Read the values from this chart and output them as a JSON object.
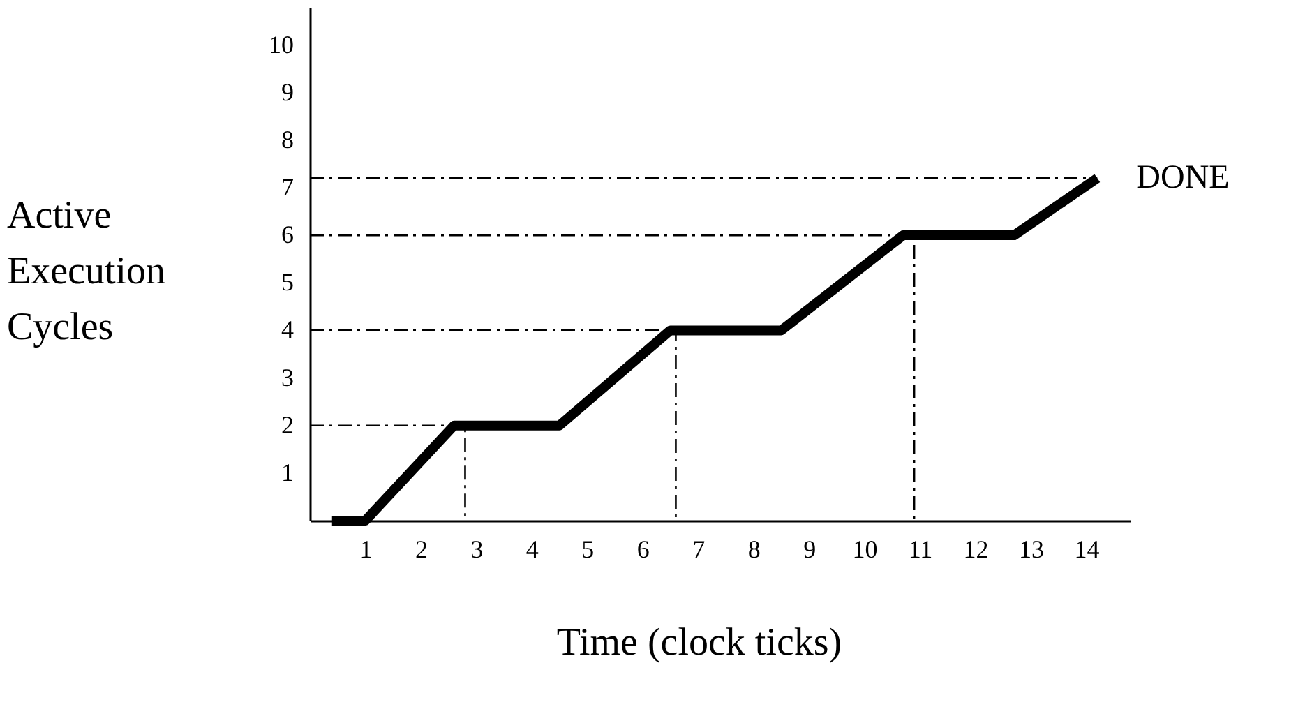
{
  "chart_data": {
    "type": "line",
    "xlabel": "Time (clock ticks)",
    "ylabel": "Active Execution Cycles",
    "xlim": [
      0,
      14.8
    ],
    "ylim": [
      0,
      10.8
    ],
    "xticks": [
      1,
      2,
      3,
      4,
      5,
      6,
      7,
      8,
      9,
      10,
      11,
      12,
      13,
      14
    ],
    "yticks": [
      1,
      2,
      3,
      4,
      5,
      6,
      7,
      8,
      9,
      10
    ],
    "grid": false,
    "marker": "none",
    "series": [
      {
        "type": "line",
        "color": "#000000",
        "line_style": "solid",
        "x": [
          0.4,
          1,
          2.6,
          4.5,
          6.5,
          8.5,
          10.7,
          12.7,
          14.2
        ],
        "values": [
          0,
          0,
          2,
          2,
          4,
          4,
          6,
          6,
          7.2
        ]
      },
      {
        "type": "line",
        "color": "#000000",
        "line_style": "dashed",
        "x": [
          0,
          2.8,
          2.8
        ],
        "values": [
          2,
          2,
          0
        ]
      },
      {
        "type": "line",
        "color": "#000000",
        "line_style": "dashed",
        "x": [
          0,
          6.6,
          6.6
        ],
        "values": [
          4,
          4,
          0
        ]
      },
      {
        "type": "line",
        "color": "#000000",
        "line_style": "dashed",
        "x": [
          0,
          10.9,
          10.9
        ],
        "values": [
          6,
          6,
          0
        ]
      },
      {
        "type": "line",
        "color": "#000000",
        "line_style": "dashed",
        "x": [
          0,
          14.2
        ],
        "values": [
          7.2,
          7.2
        ]
      }
    ],
    "annotations": [
      {
        "text": "DONE",
        "x": 14.2,
        "y": 7.2
      }
    ]
  }
}
